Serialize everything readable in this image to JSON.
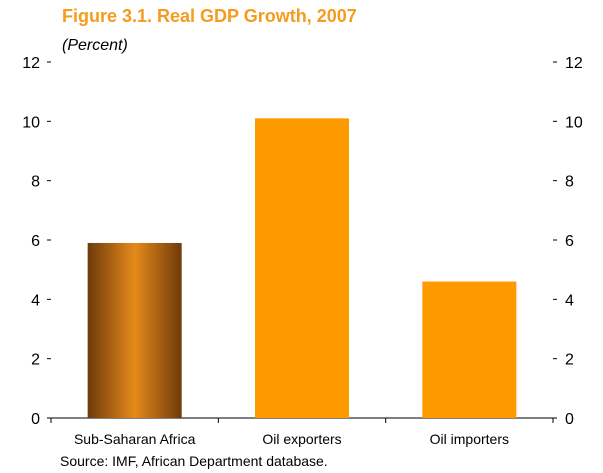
{
  "header": {
    "title": "Figure 3.1. Real GDP Growth, 2007",
    "subtitle": "(Percent)"
  },
  "footer": {
    "source": "Source: IMF, African Department database."
  },
  "colors": {
    "title": "#f59b1e",
    "bar": "#ff9900",
    "bar_gradient_dark": "#6e3a0a",
    "bar_gradient_light": "#e58a1a",
    "axis": "#000000"
  },
  "chart_data": {
    "type": "bar",
    "title": "Figure 3.1. Real GDP Growth, 2007",
    "subtitle": "(Percent)",
    "categories": [
      "Sub-Saharan Africa",
      "Oil exporters",
      "Oil importers"
    ],
    "values": [
      5.9,
      10.1,
      4.6
    ],
    "ylim": [
      0,
      12
    ],
    "yticks": [
      0,
      2,
      4,
      6,
      8,
      10,
      12
    ],
    "xlabel": "",
    "ylabel": "",
    "grid": false,
    "legend": "none",
    "secondary_y_axis": true
  }
}
